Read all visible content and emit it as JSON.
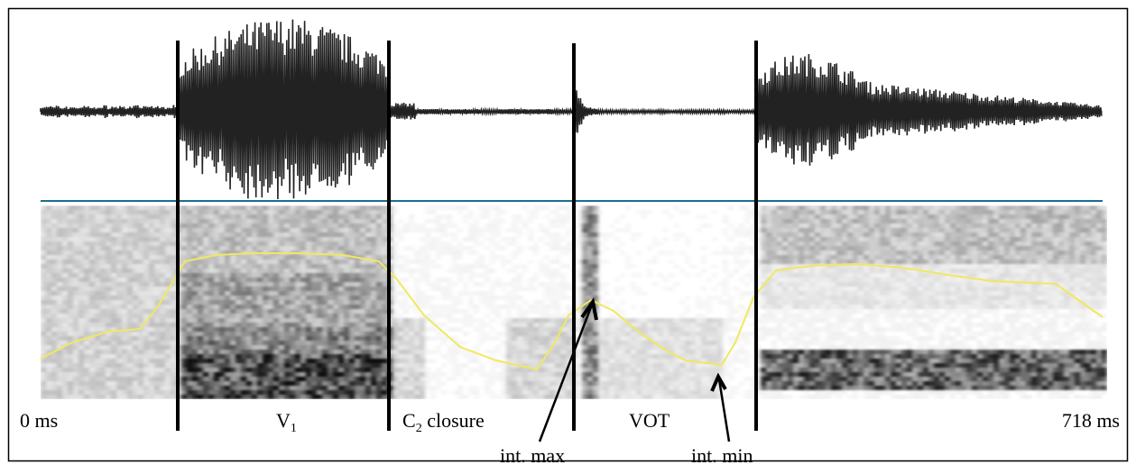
{
  "labels": {
    "start": "0 ms",
    "end": "718 ms",
    "v1": {
      "base": "V",
      "sub": "1"
    },
    "c2": {
      "base": "C",
      "sub": "2",
      "rest": " closure"
    },
    "vot": "VOT",
    "int_max": "int. max",
    "int_min": "int. min"
  }
}
